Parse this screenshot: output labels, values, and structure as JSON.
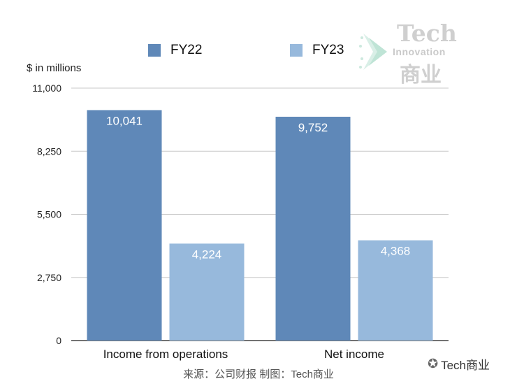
{
  "chart_data": {
    "type": "bar",
    "categories": [
      "Income from operations",
      "Net income"
    ],
    "series": [
      {
        "name": "FY22",
        "values": [
          10041,
          9752
        ],
        "labels": [
          "10,041",
          "9,752"
        ],
        "color": "#5f88b8"
      },
      {
        "name": "FY23",
        "values": [
          4224,
          4368
        ],
        "labels": [
          "4,224",
          "4,368"
        ],
        "color": "#97b9dc"
      }
    ],
    "title": "",
    "xlabel": "",
    "ylabel": "$ in millions",
    "ylim": [
      0,
      11000
    ],
    "yticks": [
      0,
      2750,
      5500,
      8250,
      11000
    ],
    "ytick_labels": [
      "0",
      "2,750",
      "5,500",
      "8,250",
      "11,000"
    ],
    "grid": true,
    "legend_position": "top"
  },
  "source_text": "来源：公司财报 制图：Tech商业",
  "watermark": {
    "tech": "Tech",
    "innovation": "Innovation",
    "cn": "商业"
  },
  "wechat_label": "Tech商业",
  "colors": {
    "gridline": "#c8c8c8",
    "axis": "#444444",
    "label_text": "#ffffff"
  }
}
